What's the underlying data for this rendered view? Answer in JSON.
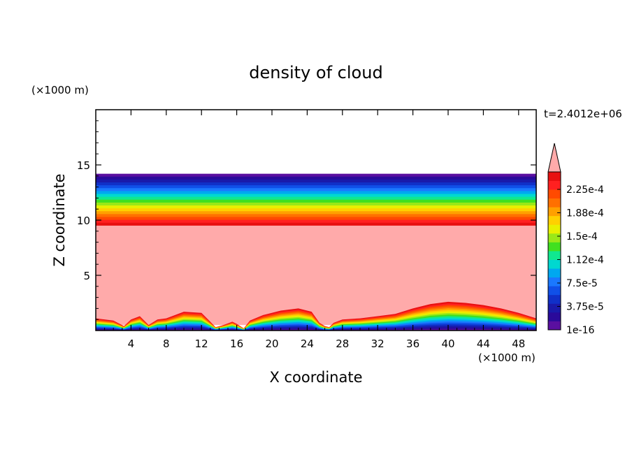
{
  "chart_data": {
    "type": "heatmap",
    "title": "density of cloud",
    "xlabel": "X coordinate",
    "ylabel": "Z coordinate",
    "x_unit": "(×1000 m)",
    "y_unit": "(×1000 m)",
    "time_label": "t=2.4012e+06",
    "xlim": [
      0,
      50
    ],
    "ylim": [
      0,
      20
    ],
    "x_ticks": [
      "4",
      "8",
      "12",
      "16",
      "20",
      "24",
      "28",
      "32",
      "36",
      "40",
      "44",
      "48"
    ],
    "y_ticks": [
      "5",
      "10",
      "15"
    ],
    "colorbar": {
      "tick_labels": [
        "2.25e-4",
        "1.88e-4",
        "1.5e-4",
        "1.12e-4",
        "7.5e-5",
        "3.75e-5",
        "1e-16"
      ],
      "colors": [
        "#5a0fa0",
        "#2a0a9a",
        "#1a1aaa",
        "#1030c8",
        "#1050e8",
        "#1a78ff",
        "#00a8f0",
        "#00d8d0",
        "#10e890",
        "#40e020",
        "#9ae818",
        "#e8f000",
        "#ffd000",
        "#ffa000",
        "#ff7000",
        "#ff4a00",
        "#ff2020",
        "#e81010"
      ],
      "over_color": "#ffaaaa"
    },
    "fields": {
      "upper_layer_z": [
        9.5,
        14.2
      ],
      "saturated_region_z": [
        0.5,
        9.5
      ],
      "background_color": "#ffaaaa"
    },
    "surface_profile": {
      "x": [
        0,
        2,
        3.2,
        4,
        5,
        6,
        7,
        8,
        10,
        12,
        13,
        13.6,
        14.5,
        15.5,
        16,
        16.8,
        17.5,
        19,
        21,
        23,
        24.5,
        25.4,
        26,
        26.5,
        27,
        28,
        30,
        32,
        34,
        36,
        38,
        40,
        42,
        44,
        46,
        48,
        50
      ],
      "z": [
        1.1,
        0.9,
        0.4,
        1.0,
        1.3,
        0.5,
        1.0,
        1.1,
        1.7,
        1.6,
        0.8,
        0.3,
        0.5,
        0.8,
        0.6,
        0.2,
        0.9,
        1.4,
        1.8,
        2.0,
        1.7,
        0.7,
        0.4,
        0.3,
        0.7,
        1.0,
        1.1,
        1.3,
        1.5,
        2.0,
        2.4,
        2.6,
        2.5,
        2.3,
        2.0,
        1.6,
        1.1
      ]
    }
  }
}
